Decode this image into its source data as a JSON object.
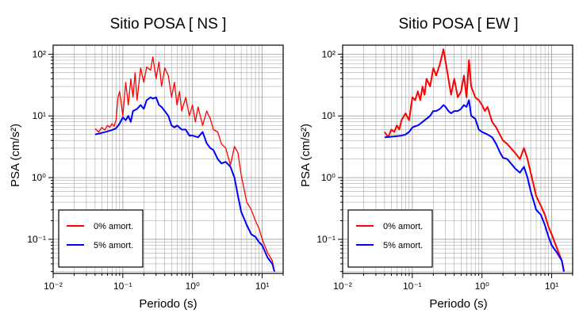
{
  "chart_data": [
    {
      "type": "line",
      "title": "Sitio POSA [ NS ]",
      "xlabel": "Periodo (s)",
      "ylabel": "PSA (cm/s²)",
      "xscale": "log",
      "yscale": "log",
      "xlim": [
        0.01,
        20
      ],
      "ylim": [
        0.028,
        140
      ],
      "x_ticks": [
        "10⁻²",
        "10⁻¹",
        "10⁰",
        "10¹"
      ],
      "y_ticks": [
        "10⁻¹",
        "10⁰",
        "10¹",
        "10²"
      ],
      "grid": true,
      "legend_position": "bottom-left",
      "series": [
        {
          "name": "0% amort.",
          "color": "#ff0000",
          "x": [
            0.04,
            0.045,
            0.05,
            0.055,
            0.06,
            0.065,
            0.07,
            0.075,
            0.08,
            0.085,
            0.09,
            0.1,
            0.11,
            0.12,
            0.13,
            0.14,
            0.15,
            0.16,
            0.18,
            0.2,
            0.22,
            0.25,
            0.27,
            0.3,
            0.33,
            0.36,
            0.4,
            0.45,
            0.5,
            0.55,
            0.6,
            0.65,
            0.7,
            0.8,
            0.9,
            1.0,
            1.1,
            1.2,
            1.4,
            1.6,
            1.8,
            2.0,
            2.3,
            2.6,
            3.0,
            3.5,
            4.0,
            4.5,
            5.0,
            6.0,
            7.0,
            8.0,
            9.0,
            10.0,
            12.0,
            14.0,
            15.0
          ],
          "values": [
            6.2,
            5.5,
            6.5,
            5.9,
            7.0,
            6.5,
            7.5,
            6.8,
            8.5,
            20.0,
            25.0,
            10.0,
            35.0,
            15.0,
            40.0,
            20.0,
            50.0,
            18.0,
            60.0,
            35.0,
            62.0,
            55.0,
            90.0,
            40.0,
            75.0,
            30.0,
            60.0,
            45.0,
            20.0,
            35.0,
            15.0,
            25.0,
            12.0,
            20.0,
            10.0,
            15.0,
            8.0,
            14.0,
            7.0,
            12.0,
            9.0,
            6.0,
            5.5,
            3.5,
            3.0,
            1.6,
            3.2,
            2.5,
            1.1,
            0.4,
            0.3,
            0.2,
            0.15,
            0.1,
            0.06,
            0.045,
            0.03
          ]
        },
        {
          "name": "5% amort.",
          "color": "#0000ff",
          "x": [
            0.04,
            0.05,
            0.06,
            0.07,
            0.08,
            0.09,
            0.1,
            0.11,
            0.12,
            0.13,
            0.14,
            0.16,
            0.18,
            0.2,
            0.22,
            0.25,
            0.27,
            0.3,
            0.33,
            0.36,
            0.4,
            0.45,
            0.5,
            0.55,
            0.6,
            0.7,
            0.8,
            0.9,
            1.0,
            1.2,
            1.4,
            1.6,
            1.8,
            2.0,
            2.3,
            2.6,
            3.0,
            3.5,
            4.0,
            4.5,
            5.0,
            6.0,
            7.0,
            8.0,
            9.0,
            10.0,
            12.0,
            14.0,
            15.0
          ],
          "values": [
            5.0,
            5.3,
            5.6,
            5.9,
            6.3,
            7.5,
            9.5,
            8.5,
            10.0,
            8.0,
            12.0,
            13.0,
            15.0,
            13.0,
            18.0,
            20.0,
            19.0,
            20.0,
            15.0,
            14.0,
            12.0,
            10.0,
            7.0,
            6.5,
            7.0,
            6.0,
            6.0,
            4.8,
            4.8,
            4.5,
            5.5,
            3.6,
            3.0,
            2.8,
            2.0,
            1.7,
            1.8,
            1.5,
            1.0,
            0.5,
            0.28,
            0.17,
            0.12,
            0.11,
            0.09,
            0.08,
            0.05,
            0.04,
            0.03
          ]
        }
      ]
    },
    {
      "type": "line",
      "title": "Sitio POSA [ EW ]",
      "xlabel": "Periodo (s)",
      "ylabel": "PSA (cm/s²)",
      "xscale": "log",
      "yscale": "log",
      "xlim": [
        0.01,
        20
      ],
      "ylim": [
        0.028,
        140
      ],
      "x_ticks": [
        "10⁻²",
        "10⁻¹",
        "10⁰",
        "10¹"
      ],
      "y_ticks": [
        "10⁻¹",
        "10⁰",
        "10¹",
        "10²"
      ],
      "grid": true,
      "legend_position": "bottom-left",
      "series": [
        {
          "name": "0% amort.",
          "color": "#ff0000",
          "x": [
            0.04,
            0.045,
            0.05,
            0.055,
            0.06,
            0.065,
            0.07,
            0.08,
            0.09,
            0.1,
            0.11,
            0.12,
            0.13,
            0.14,
            0.15,
            0.16,
            0.18,
            0.2,
            0.22,
            0.25,
            0.28,
            0.3,
            0.33,
            0.36,
            0.4,
            0.45,
            0.5,
            0.55,
            0.6,
            0.65,
            0.7,
            0.8,
            0.9,
            1.0,
            1.1,
            1.2,
            1.4,
            1.6,
            1.8,
            2.0,
            2.3,
            2.6,
            3.0,
            3.5,
            4.0,
            4.5,
            5.0,
            6.0,
            7.0,
            8.0,
            9.0,
            10.0,
            12.0,
            14.0,
            15.0
          ],
          "values": [
            5.5,
            4.5,
            6.0,
            5.5,
            7.0,
            6.0,
            8.5,
            11.0,
            8.5,
            20.0,
            18.0,
            25.0,
            18.0,
            30.0,
            22.0,
            40.0,
            30.0,
            60.0,
            45.0,
            70.0,
            120.0,
            75.0,
            40.0,
            22.0,
            40.0,
            20.0,
            25.0,
            45.0,
            20.0,
            80.0,
            30.0,
            20.0,
            18.0,
            15.0,
            12.0,
            14.0,
            8.0,
            6.5,
            5.0,
            4.0,
            3.5,
            3.0,
            2.5,
            2.0,
            3.0,
            2.0,
            1.2,
            0.5,
            0.35,
            0.25,
            0.16,
            0.12,
            0.07,
            0.045,
            0.03
          ]
        },
        {
          "name": "5% amort.",
          "color": "#0000ff",
          "x": [
            0.04,
            0.05,
            0.06,
            0.07,
            0.08,
            0.09,
            0.1,
            0.11,
            0.12,
            0.13,
            0.14,
            0.16,
            0.18,
            0.2,
            0.22,
            0.25,
            0.28,
            0.3,
            0.33,
            0.36,
            0.4,
            0.45,
            0.5,
            0.55,
            0.6,
            0.65,
            0.7,
            0.8,
            0.9,
            1.0,
            1.2,
            1.4,
            1.6,
            1.8,
            2.0,
            2.3,
            2.6,
            3.0,
            3.5,
            4.0,
            4.5,
            5.0,
            6.0,
            7.0,
            8.0,
            9.0,
            10.0,
            12.0,
            14.0,
            15.0
          ],
          "values": [
            4.5,
            4.6,
            4.7,
            4.8,
            5.0,
            5.5,
            6.5,
            6.8,
            7.0,
            7.5,
            8.0,
            9.0,
            10.0,
            12.0,
            12.0,
            13.0,
            15.0,
            14.0,
            12.0,
            11.0,
            12.0,
            12.0,
            13.0,
            15.0,
            14.0,
            18.0,
            10.0,
            9.0,
            6.0,
            5.5,
            5.0,
            4.5,
            3.5,
            2.6,
            2.1,
            2.0,
            1.7,
            1.4,
            1.2,
            1.5,
            1.0,
            0.6,
            0.3,
            0.25,
            0.17,
            0.11,
            0.08,
            0.06,
            0.045,
            0.03
          ]
        }
      ]
    }
  ]
}
